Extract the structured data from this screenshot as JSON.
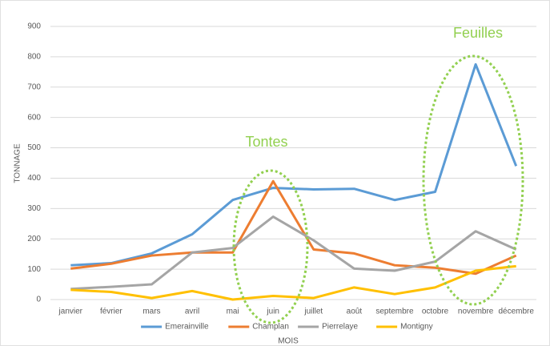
{
  "chart_data": {
    "type": "line",
    "y_label": "TONNAGE",
    "x_label": "MOIS",
    "annotations": [
      "Tontes",
      "Feuilles"
    ],
    "categories": [
      "janvier",
      "février",
      "mars",
      "avril",
      "mai",
      "juin",
      "juillet",
      "août",
      "septembre",
      "octobre",
      "novembre",
      "décembre"
    ],
    "series": [
      {
        "name": "Emerainville",
        "color": "#5b9bd5",
        "values": [
          113,
          120,
          152,
          215,
          328,
          368,
          363,
          365,
          328,
          355,
          775,
          440
        ]
      },
      {
        "name": "Champlan",
        "color": "#ed7d31",
        "values": [
          102,
          118,
          145,
          155,
          155,
          390,
          165,
          152,
          113,
          105,
          85,
          145
        ]
      },
      {
        "name": "Pierrelaye",
        "color": "#a5a5a5",
        "values": [
          35,
          42,
          50,
          155,
          170,
          273,
          195,
          102,
          95,
          125,
          225,
          165
        ]
      },
      {
        "name": "Montigny",
        "color": "#ffc000",
        "values": [
          32,
          25,
          5,
          28,
          0,
          12,
          5,
          40,
          18,
          40,
          95,
          110
        ]
      }
    ],
    "ylim": [
      0,
      900
    ],
    "yticks": [
      0,
      100,
      200,
      300,
      400,
      500,
      600,
      700,
      800,
      900
    ],
    "grid": true,
    "legend": "bottom"
  }
}
